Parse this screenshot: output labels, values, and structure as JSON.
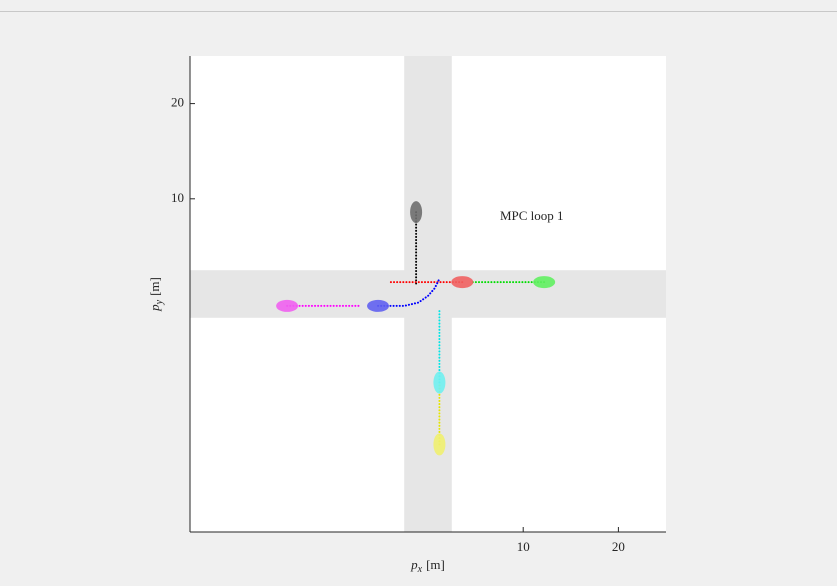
{
  "chart_data": {
    "type": "trajectory",
    "xlabel": {
      "symbol": "p",
      "subscript": "x",
      "unit": "[m]"
    },
    "ylabel": {
      "symbol": "p",
      "subscript": "y",
      "unit": "[m]"
    },
    "annotation": {
      "text": "MPC loop 1",
      "x": 10.9,
      "y": 8.1
    },
    "xlim": [
      -25,
      25
    ],
    "ylim": [
      -25,
      25
    ],
    "xticks": [
      10,
      20
    ],
    "yticks": [
      10,
      20
    ],
    "road_half_width": 2.5,
    "road_color": "#e6e6e6",
    "series": [
      {
        "color": "#000000",
        "x": [
          -1.25,
          -1.25
        ],
        "y": [
          8.6,
          0.95
        ]
      },
      {
        "color": "#ff0000",
        "x": [
          3.6,
          -4
        ],
        "y": [
          1.25,
          1.25
        ]
      },
      {
        "color": "#00dd00",
        "x": [
          12.2,
          4.5
        ],
        "y": [
          1.25,
          1.25
        ]
      },
      {
        "color": "#ff00ff",
        "x": [
          -14.8,
          -7
        ],
        "y": [
          -1.25,
          -1.25
        ]
      },
      {
        "color": "#0000ff",
        "x": [
          -5.25,
          -2.5,
          -1,
          0,
          0.7,
          1.2
        ],
        "y": [
          -1.25,
          -1.25,
          -0.9,
          -0.2,
          0.6,
          1.6
        ]
      },
      {
        "color": "#00e5e5",
        "x": [
          1.2,
          1.2
        ],
        "y": [
          -9.3,
          -1.6
        ]
      },
      {
        "color": "#e5e500",
        "x": [
          1.2,
          1.2
        ],
        "y": [
          -15.8,
          -9.3
        ]
      }
    ],
    "vehicles": [
      {
        "color": "#6e6e6e",
        "x": -1.25,
        "y": 8.6
      },
      {
        "color": "#f06060",
        "x": 3.6,
        "y": 1.25
      },
      {
        "color": "#60f060",
        "x": 12.2,
        "y": 1.25
      },
      {
        "color": "#f060f0",
        "x": -14.8,
        "y": -1.25
      },
      {
        "color": "#6060f0",
        "x": -5.25,
        "y": -1.25
      },
      {
        "color": "#70f0f0",
        "x": 1.2,
        "y": -9.3
      },
      {
        "color": "#f0f070",
        "x": 1.2,
        "y": -15.8
      }
    ]
  }
}
